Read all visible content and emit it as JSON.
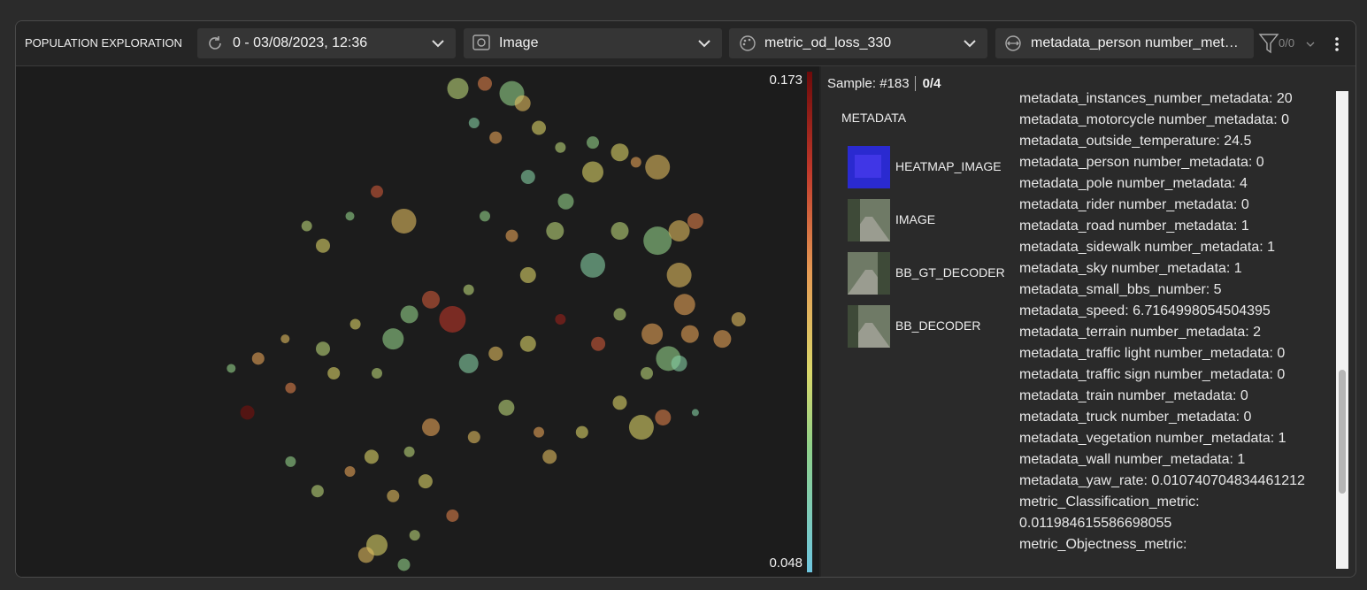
{
  "toolbar": {
    "title": "POPULATION EXPLORATION",
    "version": "0 - 03/08/2023, 12:36",
    "visualization": "Image",
    "metric": "metric_od_loss_330",
    "size_by": "metadata_person number_metadata",
    "filter_count": "0/0"
  },
  "colorbar": {
    "max": 0.173,
    "min": 0.048
  },
  "embedding": {
    "points": [
      [
        45,
        2,
        12,
        0.09
      ],
      [
        50,
        1,
        8,
        0.13
      ],
      [
        55,
        3,
        14,
        0.08
      ],
      [
        57,
        5,
        9,
        0.11
      ],
      [
        48,
        9,
        6,
        0.07
      ],
      [
        52,
        12,
        7,
        0.12
      ],
      [
        60,
        10,
        8,
        0.1
      ],
      [
        64,
        14,
        6,
        0.09
      ],
      [
        70,
        13,
        7,
        0.08
      ],
      [
        75,
        15,
        10,
        0.1
      ],
      [
        78,
        17,
        6,
        0.12
      ],
      [
        82,
        18,
        14,
        0.11
      ],
      [
        70,
        19,
        12,
        0.1
      ],
      [
        58,
        20,
        8,
        0.07
      ],
      [
        65,
        25,
        9,
        0.08
      ],
      [
        30,
        23,
        7,
        0.14
      ],
      [
        35,
        29,
        14,
        0.11
      ],
      [
        25,
        28,
        5,
        0.08
      ],
      [
        17,
        30,
        6,
        0.09
      ],
      [
        20,
        34,
        8,
        0.1
      ],
      [
        50,
        28,
        6,
        0.08
      ],
      [
        55,
        32,
        7,
        0.12
      ],
      [
        63,
        31,
        10,
        0.09
      ],
      [
        75,
        31,
        10,
        0.09
      ],
      [
        82,
        33,
        16,
        0.08
      ],
      [
        86,
        31,
        12,
        0.11
      ],
      [
        89,
        29,
        9,
        0.13
      ],
      [
        86,
        40,
        14,
        0.11
      ],
      [
        87,
        46,
        12,
        0.12
      ],
      [
        70,
        38,
        14,
        0.07
      ],
      [
        58,
        40,
        9,
        0.1
      ],
      [
        47,
        43,
        6,
        0.09
      ],
      [
        40,
        45,
        10,
        0.14
      ],
      [
        44,
        49,
        15,
        0.15
      ],
      [
        36,
        48,
        10,
        0.08
      ],
      [
        26,
        50,
        6,
        0.1
      ],
      [
        20,
        55,
        8,
        0.09
      ],
      [
        13,
        53,
        5,
        0.11
      ],
      [
        8,
        57,
        7,
        0.12
      ],
      [
        3,
        59,
        5,
        0.08
      ],
      [
        6,
        68,
        8,
        0.17
      ],
      [
        14,
        63,
        6,
        0.13
      ],
      [
        22,
        60,
        7,
        0.1
      ],
      [
        33,
        53,
        12,
        0.08
      ],
      [
        30,
        60,
        6,
        0.09
      ],
      [
        47,
        58,
        11,
        0.07
      ],
      [
        52,
        56,
        8,
        0.11
      ],
      [
        58,
        54,
        9,
        0.1
      ],
      [
        64,
        49,
        6,
        0.16
      ],
      [
        71,
        54,
        8,
        0.14
      ],
      [
        75,
        48,
        7,
        0.09
      ],
      [
        81,
        52,
        12,
        0.12
      ],
      [
        84,
        57,
        14,
        0.08
      ],
      [
        86,
        58,
        9,
        0.07
      ],
      [
        88,
        52,
        10,
        0.12
      ],
      [
        94,
        53,
        10,
        0.12
      ],
      [
        97,
        49,
        8,
        0.11
      ],
      [
        80,
        60,
        7,
        0.09
      ],
      [
        75,
        66,
        8,
        0.1
      ],
      [
        79,
        71,
        14,
        0.1
      ],
      [
        83,
        69,
        9,
        0.13
      ],
      [
        89,
        68,
        4,
        0.07
      ],
      [
        68,
        72,
        7,
        0.1
      ],
      [
        60,
        72,
        6,
        0.12
      ],
      [
        54,
        67,
        9,
        0.09
      ],
      [
        48,
        73,
        7,
        0.11
      ],
      [
        40,
        71,
        10,
        0.12
      ],
      [
        36,
        76,
        6,
        0.09
      ],
      [
        29,
        77,
        8,
        0.1
      ],
      [
        25,
        80,
        6,
        0.12
      ],
      [
        14,
        78,
        6,
        0.08
      ],
      [
        19,
        84,
        7,
        0.09
      ],
      [
        33,
        85,
        7,
        0.11
      ],
      [
        39,
        82,
        8,
        0.1
      ],
      [
        44,
        89,
        7,
        0.13
      ],
      [
        37,
        93,
        6,
        0.09
      ],
      [
        30,
        95,
        12,
        0.1
      ],
      [
        28,
        97,
        9,
        0.11
      ],
      [
        35,
        99,
        7,
        0.08
      ],
      [
        62,
        77,
        8,
        0.11
      ]
    ]
  },
  "sample": {
    "label": "Sample: #183",
    "count": "0/4"
  },
  "tabs": {
    "heading": "METADATA",
    "items": [
      "HEATMAP_IMAGE",
      "IMAGE",
      "BB_GT_DECODER",
      "BB_DECODER"
    ]
  },
  "metadata_lines": [
    "metadata_instances_number_metadata: 20",
    "metadata_motorcycle number_metadata: 0",
    "metadata_outside_temperature: 24.5",
    "metadata_person number_metadata: 0",
    "metadata_pole number_metadata: 4",
    "metadata_rider number_metadata: 0",
    "metadata_road number_metadata: 1",
    "metadata_sidewalk number_metadata: 1",
    "metadata_sky number_metadata: 1",
    "metadata_small_bbs_number: 5",
    "metadata_speed: 6.7164998054504395",
    "metadata_terrain number_metadata: 2",
    "metadata_traffic light number_metadata: 0",
    "metadata_traffic sign number_metadata: 0",
    "metadata_train number_metadata: 0",
    "metadata_truck number_metadata: 0",
    "metadata_vegetation number_metadata: 1",
    "metadata_wall number_metadata: 1",
    "metadata_yaw_rate: 0.010740704834461212",
    "metric_Classification_metric:",
    "0.011984615586698055",
    "metric_Objectness_metric:"
  ]
}
